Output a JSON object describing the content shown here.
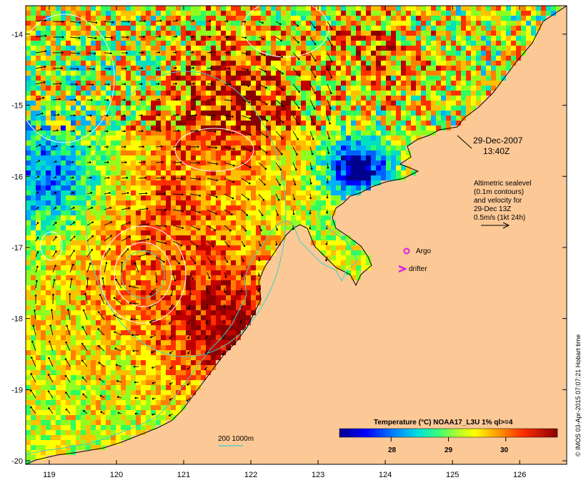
{
  "map": {
    "date": "29-Dec-2007",
    "time": "13:40Z",
    "legend_lines": [
      "Altimetric sealevel",
      "(0.1m contours)",
      "and velocity for",
      "29-Dec 13Z",
      "0.5m/s (1kt 24h)"
    ],
    "argo_label": "Argo",
    "drifter_label": "drifter",
    "depth_label": "200  1000m",
    "colorbar": {
      "title": "Temperature (°C) NOAA17_L3U 1% ql>=4",
      "ticks": [
        "28",
        "29",
        "30"
      ]
    },
    "credit": "© IMOS 03-Apr-2015 07:07:21 Hobart time",
    "x_ticks": [
      "119",
      "120",
      "121",
      "122",
      "123",
      "124",
      "125",
      "126"
    ],
    "y_ticks": [
      "-14",
      "-15",
      "-16",
      "-17",
      "-18",
      "-19",
      "-20"
    ],
    "colors": {
      "land": "#fcc896",
      "frame": "#000000",
      "contour": "#ffffff",
      "isobath_200": "#3fd0c8",
      "argo": "#e020e0",
      "drifter": "#e020e0"
    }
  },
  "chart_data": {
    "type": "heatmap",
    "title": "Temperature (°C) NOAA17_L3U 1% ql>=4",
    "xlabel": "",
    "ylabel": "",
    "xlim": [
      118.65,
      126.7
    ],
    "ylim": [
      -20.05,
      -13.6
    ],
    "x_ticks": [
      119,
      120,
      121,
      122,
      123,
      124,
      125,
      126
    ],
    "y_ticks": [
      -14,
      -15,
      -16,
      -17,
      -18,
      -19,
      -20
    ],
    "colorbar_range": [
      27.1,
      30.9
    ],
    "colorbar_ticks": [
      28,
      29,
      30
    ],
    "markers": [
      {
        "name": "Argo",
        "lon": 124.3,
        "lat": -17.05
      },
      {
        "name": "drifter",
        "lon": 124.2,
        "lat": -17.3
      }
    ],
    "annotations": [
      "29-Dec-2007",
      "13:40Z",
      "Altimetric sealevel",
      "(0.1m contours)",
      "and velocity for",
      "29-Dec 13Z",
      "0.5m/s (1kt 24h)"
    ]
  }
}
